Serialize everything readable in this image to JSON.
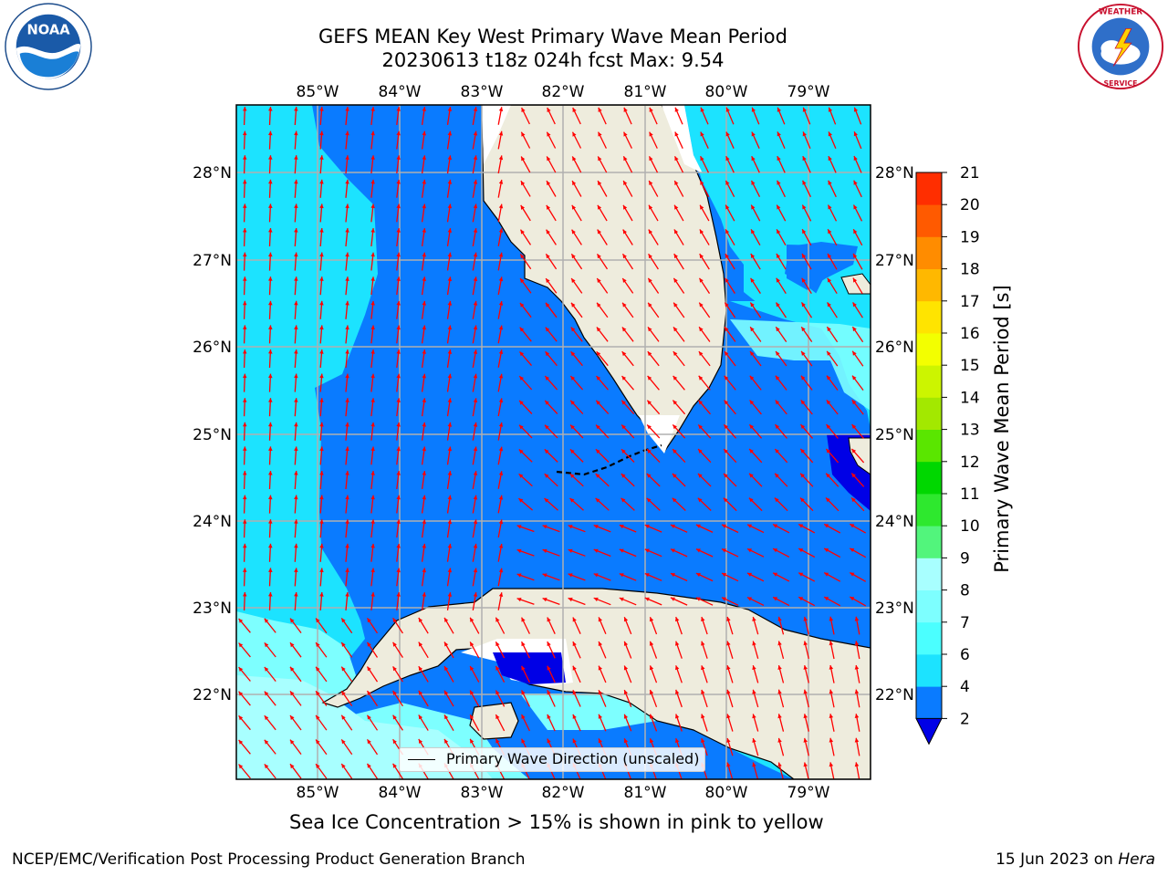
{
  "title": {
    "line1": "GEFS MEAN Key West Primary Wave Mean Period",
    "line2": "20230613 t18z 024h fcst   Max: 9.54"
  },
  "logos": {
    "left": "noaa-logo",
    "right": "nws-logo"
  },
  "map": {
    "lon_ticks": [
      "85°W",
      "84°W",
      "83°W",
      "82°W",
      "81°W",
      "80°W",
      "79°W"
    ],
    "lat_ticks": [
      "28°N",
      "27°N",
      "26°N",
      "25°N",
      "24°N",
      "23°N",
      "22°N"
    ],
    "land_color": "#eeecdd",
    "arrow_color": "#ff0000",
    "grid_color": "#b0b0b0",
    "legend_label": "Primary Wave Direction (unscaled)"
  },
  "colorbar": {
    "label": "Primary Wave Mean Period [s]",
    "ticks": [
      "2",
      "4",
      "6",
      "7",
      "8",
      "9",
      "10",
      "11",
      "12",
      "13",
      "14",
      "15",
      "16",
      "17",
      "18",
      "19",
      "20",
      "21"
    ],
    "colors": [
      "#0a7bff",
      "#1ce3ff",
      "#4bffff",
      "#7dffff",
      "#a8ffff",
      "#52f57c",
      "#2ee82e",
      "#00d700",
      "#5ae600",
      "#a3e800",
      "#ccf500",
      "#f3ff00",
      "#ffe400",
      "#ffb800",
      "#ff8c00",
      "#ff5a00",
      "#ff2e00",
      "#ff0000"
    ],
    "under_color": "#0000e6"
  },
  "notes": {
    "sea_ice": "Sea Ice Concentration > 15% is shown in pink to yellow"
  },
  "footer": {
    "left": "NCEP/EMC/Verification Post Processing Product Generation Branch",
    "right_prefix": "15 Jun 2023 on ",
    "right_host": "Hera"
  }
}
